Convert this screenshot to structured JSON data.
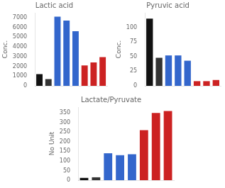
{
  "chart_data": [
    {
      "type": "bar",
      "title": "Lactic acid",
      "ylabel": "Conc.",
      "categories": [
        null,
        null,
        null,
        null,
        null,
        null,
        null,
        null
      ],
      "values": [
        1200,
        700,
        7100,
        6700,
        5600,
        2100,
        2400,
        2950
      ],
      "colors": [
        "#111111",
        "#333333",
        "#3366cc",
        "#3366cc",
        "#3366cc",
        "#cc2222",
        "#cc2222",
        "#cc2222"
      ],
      "ylim": [
        0,
        7500
      ],
      "yticks": [
        0,
        1000,
        2000,
        3000,
        4000,
        5000,
        6000,
        7000
      ],
      "grid": false,
      "tick_labels": "y"
    },
    {
      "type": "bar",
      "title": "Pyruvic acid",
      "ylabel": "Conc.",
      "categories": [
        null,
        null,
        null,
        null,
        null,
        null,
        null,
        null
      ],
      "values": [
        115,
        48,
        52,
        52,
        43,
        8,
        8,
        10
      ],
      "colors": [
        "#111111",
        "#333333",
        "#3366cc",
        "#3366cc",
        "#3366cc",
        "#cc2222",
        "#cc2222",
        "#cc2222"
      ],
      "ylim": [
        0,
        125
      ],
      "yticks": [
        0,
        25,
        50,
        75,
        100
      ],
      "grid": false,
      "tick_labels": "y"
    },
    {
      "type": "bar",
      "title": "Lactate/Pyruvate",
      "ylabel": "No Unit",
      "categories": [
        null,
        null,
        null,
        null,
        null,
        null,
        null,
        null
      ],
      "values": [
        12,
        15,
        140,
        130,
        135,
        260,
        350,
        360
      ],
      "colors": [
        "#111111",
        "#333333",
        "#3366cc",
        "#3366cc",
        "#3366cc",
        "#cc2222",
        "#cc2222",
        "#cc2222"
      ],
      "ylim": [
        0,
        380
      ],
      "yticks": [
        0,
        50,
        100,
        150,
        200,
        250,
        300,
        350
      ],
      "grid": false,
      "tick_labels": "y"
    }
  ]
}
